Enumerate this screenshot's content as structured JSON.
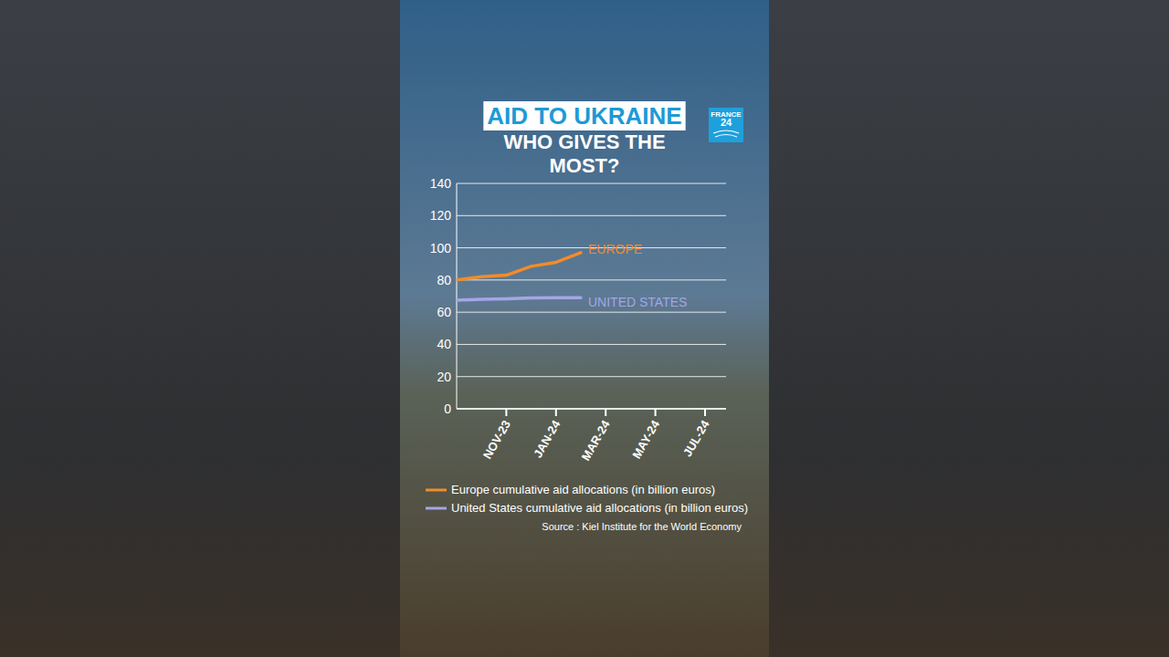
{
  "chart_data": {
    "type": "line",
    "title": "AID TO UKRAINE",
    "subtitle": "WHO GIVES THE MOST?",
    "brand": "FRANCE 24",
    "source": "Source : Kiel Institute for the World Economy",
    "categories": [
      null,
      null,
      "NOV-23",
      null,
      "JAN-24",
      null,
      "MAR-24",
      null,
      "MAY-24",
      null,
      "JUL-24"
    ],
    "series": [
      {
        "name": "Europe cumulative aid allocations (in billion euros)",
        "color": "#f28c28",
        "values": [
          80,
          82,
          83,
          88.5,
          91,
          97,
          null,
          null,
          null,
          null,
          null
        ]
      },
      {
        "name": "United States cumulative aid allocations (in billion euros)",
        "color": "#a4a6e6",
        "values": [
          67.5,
          68,
          68.3,
          68.8,
          69,
          69,
          null,
          null,
          null,
          null,
          null
        ]
      }
    ],
    "annotations": [
      "EUROPE",
      "UNITED STATES"
    ],
    "ylim": [
      0,
      140
    ],
    "yticks": [
      0,
      20,
      40,
      60,
      80,
      100,
      120,
      140
    ],
    "grid": true,
    "legend": "bottom"
  }
}
